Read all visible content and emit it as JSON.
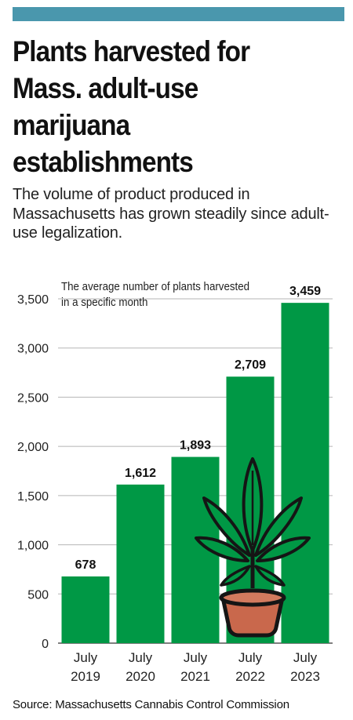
{
  "title": "Plants harvested for\nMass. adult-use\nmarijuana\nestablishments",
  "subtitle": "The volume of product produced in Massachusetts has grown steadily since adult-use legalization.",
  "source": "Source: Massachusetts Cannabis Control Commission",
  "colors": {
    "accent_bar": "#4a97ad",
    "bar": "#009845",
    "pot": "#c9684c",
    "leaf": "#009845"
  },
  "chart_data": {
    "type": "bar",
    "categories": [
      "July 2019",
      "July 2020",
      "July 2021",
      "July 2022",
      "July 2023"
    ],
    "category_lines": [
      [
        "July",
        "2019"
      ],
      [
        "July",
        "2020"
      ],
      [
        "July",
        "2021"
      ],
      [
        "July",
        "2022"
      ],
      [
        "July",
        "2023"
      ]
    ],
    "values": [
      678,
      1612,
      1893,
      2709,
      3459
    ],
    "value_labels": [
      "678",
      "1,612",
      "1,893",
      "2,709",
      "3,459"
    ],
    "annotation": "The average number of plants harvested\nin a specific month",
    "ylim": [
      0,
      3500
    ],
    "yticks": [
      0,
      500,
      1000,
      1500,
      2000,
      2500,
      3000,
      3500
    ],
    "ytick_labels": [
      "0",
      "500",
      "1,000",
      "1,500",
      "2,000",
      "2,500",
      "3,000",
      "3,500"
    ],
    "grid": true,
    "icon": "cannabis-plant-in-pot-icon"
  }
}
